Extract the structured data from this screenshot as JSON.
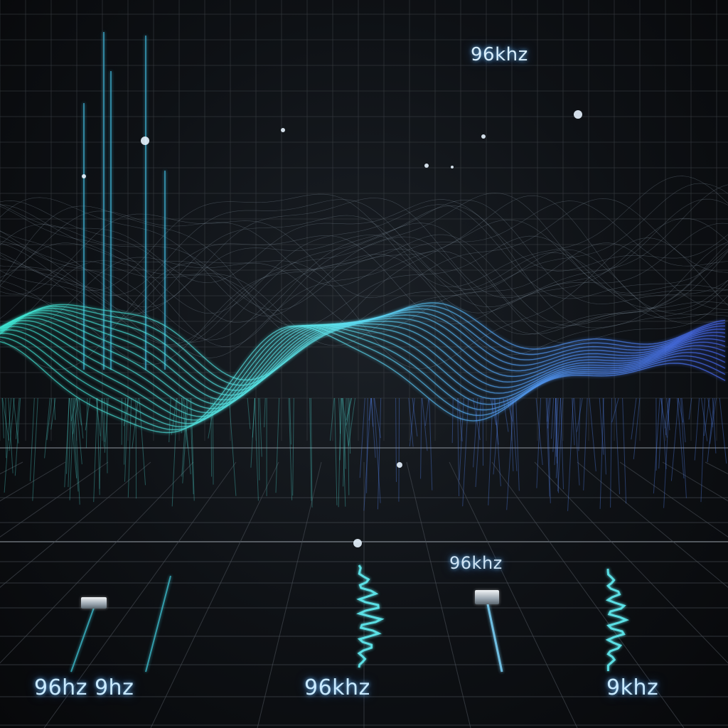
{
  "labels": {
    "top_right": "96khz",
    "mid_right": "96khz",
    "bottom_left": "96hz 9hz",
    "bottom_center": "96khz",
    "bottom_right": "9khz"
  },
  "colors": {
    "background": "#0e1115",
    "grid": "#3a3f44",
    "wave_cyan": "#5ff0e0",
    "wave_teal": "#3fd6c8",
    "wave_blue": "#4a7dff",
    "glow": "#8fd8ff"
  }
}
